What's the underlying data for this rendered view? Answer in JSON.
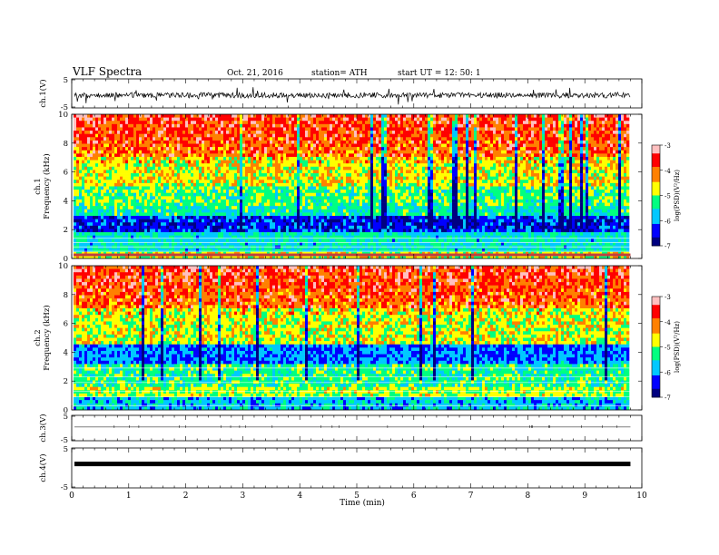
{
  "header": {
    "title": "VLF  Spectra",
    "date": "Oct. 21, 2016",
    "station": "station= ATH",
    "start": "start  UT  =    12: 50: 1"
  },
  "colors": {
    "axis": "#000000",
    "colormap": [
      "#000080",
      "#0000ff",
      "#00c8ff",
      "#00ff80",
      "#ffff00",
      "#ff8000",
      "#ff0000",
      "#ffc0c0"
    ]
  },
  "chart_data": [
    {
      "type": "line",
      "id": "ch1",
      "ylabel": "ch.1(V)",
      "ylim": [
        -5,
        5
      ],
      "yticks": [
        "5",
        "-5"
      ],
      "description_level": -0.5
    },
    {
      "type": "heatmap",
      "id": "spec1",
      "ylabel": "ch.1\nFrequency (kHz)",
      "ylim": [
        0,
        10
      ],
      "yticks": [
        "0",
        "2",
        "4",
        "6",
        "8",
        "10"
      ],
      "colorbar": {
        "label": "log(PSD)(V²/Hz)",
        "range": [
          -7,
          -3
        ],
        "ticks": [
          "-3",
          "-4",
          "-5",
          "-6",
          "-7"
        ]
      }
    },
    {
      "type": "heatmap",
      "id": "spec2",
      "ylabel": "ch.2\nFrequency (kHz)",
      "ylim": [
        0,
        10
      ],
      "yticks": [
        "0",
        "2",
        "4",
        "6",
        "8",
        "10"
      ],
      "colorbar": {
        "label": "log(PSD)(V²/Hz)",
        "range": [
          -7,
          -3
        ],
        "ticks": [
          "-3",
          "-4",
          "-5",
          "-6",
          "-7"
        ]
      }
    },
    {
      "type": "line",
      "id": "ch3",
      "ylabel": "ch.3(V)",
      "ylim": [
        -5,
        5
      ],
      "yticks": [
        "5",
        "-5"
      ]
    },
    {
      "type": "line",
      "id": "ch4",
      "ylabel": "ch.4(V)",
      "ylim": [
        -5,
        5
      ],
      "yticks": [
        "5",
        "-5"
      ]
    }
  ],
  "xaxis": {
    "label": "Time  (min)",
    "range": [
      0,
      10
    ],
    "ticks": [
      "0",
      "1",
      "2",
      "3",
      "4",
      "5",
      "6",
      "7",
      "8",
      "9",
      "10"
    ],
    "data_end": 9.8
  }
}
